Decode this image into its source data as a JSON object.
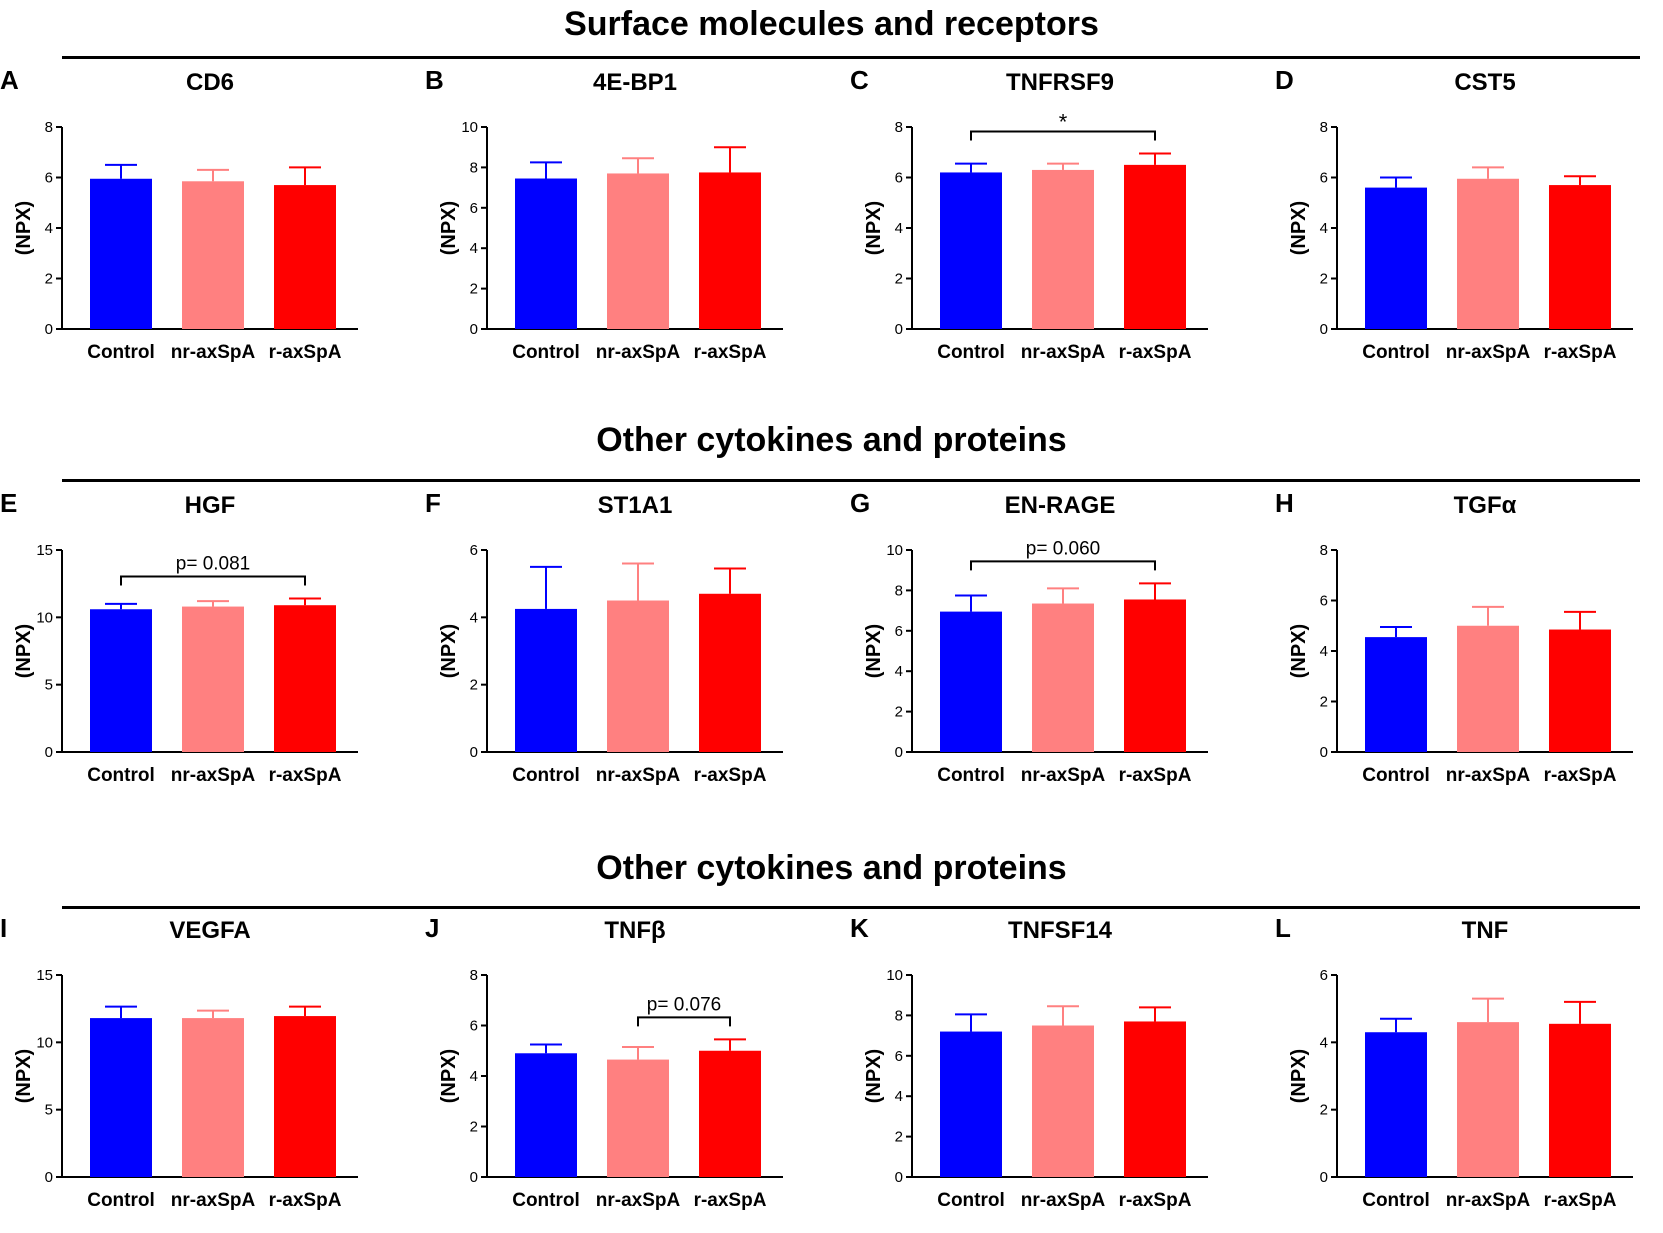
{
  "sections": [
    {
      "title": "Surface molecules and receptors"
    },
    {
      "title": "Other cytokines and proteins"
    },
    {
      "title": "Other cytokines and proteins"
    }
  ],
  "legend_colors": {
    "Control": "#0000ff",
    "nr-axSpA": "#ff8080",
    "r-axSpA": "#ff0000"
  },
  "chart_data": [
    {
      "type": "bar",
      "letter": "A",
      "title": "CD6",
      "ylabel": "(NPX)",
      "categories": [
        "Control",
        "nr-axSpA",
        "r-axSpA"
      ],
      "values": [
        5.95,
        5.85,
        5.7
      ],
      "errors": [
        0.55,
        0.45,
        0.7
      ],
      "ylim": [
        0,
        8
      ],
      "yticks": [
        "0",
        "2",
        "4",
        "6",
        "8"
      ],
      "annotation": null
    },
    {
      "type": "bar",
      "letter": "B",
      "title": "4E-BP1",
      "ylabel": "(NPX)",
      "categories": [
        "Control",
        "nr-axSpA",
        "r-axSpA"
      ],
      "values": [
        7.45,
        7.7,
        7.75
      ],
      "errors": [
        0.8,
        0.75,
        1.25
      ],
      "ylim": [
        0,
        10
      ],
      "yticks": [
        "0",
        "2",
        "4",
        "6",
        "8",
        "10"
      ],
      "annotation": null
    },
    {
      "type": "bar",
      "letter": "C",
      "title": "TNFRSF9",
      "ylabel": "(NPX)",
      "categories": [
        "Control",
        "nr-axSpA",
        "r-axSpA"
      ],
      "values": [
        6.2,
        6.3,
        6.5
      ],
      "errors": [
        0.35,
        0.25,
        0.45
      ],
      "ylim": [
        0,
        8
      ],
      "yticks": [
        "0",
        "2",
        "4",
        "6",
        "8"
      ],
      "annotation": {
        "from": 0,
        "to": 2,
        "text": "*"
      }
    },
    {
      "type": "bar",
      "letter": "D",
      "title": "CST5",
      "ylabel": "(NPX)",
      "categories": [
        "Control",
        "nr-axSpA",
        "r-axSpA"
      ],
      "values": [
        5.6,
        5.95,
        5.7
      ],
      "errors": [
        0.4,
        0.45,
        0.35
      ],
      "ylim": [
        0,
        8
      ],
      "yticks": [
        "0",
        "2",
        "4",
        "6",
        "8"
      ],
      "annotation": null
    },
    {
      "type": "bar",
      "letter": "E",
      "title": "HGF",
      "ylabel": "(NPX)",
      "categories": [
        "Control",
        "nr-axSpA",
        "r-axSpA"
      ],
      "values": [
        10.6,
        10.8,
        10.9
      ],
      "errors": [
        0.4,
        0.4,
        0.5
      ],
      "ylim": [
        0,
        15
      ],
      "yticks": [
        "0",
        "5",
        "10",
        "15"
      ],
      "annotation": {
        "from": 0,
        "to": 2,
        "text": "p= 0.081"
      }
    },
    {
      "type": "bar",
      "letter": "F",
      "title": "ST1A1",
      "ylabel": "(NPX)",
      "categories": [
        "Control",
        "nr-axSpA",
        "r-axSpA"
      ],
      "values": [
        4.25,
        4.5,
        4.7
      ],
      "errors": [
        1.25,
        1.1,
        0.75
      ],
      "ylim": [
        0,
        6
      ],
      "yticks": [
        "0",
        "2",
        "4",
        "6"
      ],
      "annotation": null
    },
    {
      "type": "bar",
      "letter": "G",
      "title": "EN-RAGE",
      "ylabel": "(NPX)",
      "categories": [
        "Control",
        "nr-axSpA",
        "r-axSpA"
      ],
      "values": [
        6.95,
        7.35,
        7.55
      ],
      "errors": [
        0.8,
        0.75,
        0.8
      ],
      "ylim": [
        0,
        10
      ],
      "yticks": [
        "0",
        "2",
        "4",
        "6",
        "8",
        "10"
      ],
      "annotation": {
        "from": 0,
        "to": 2,
        "text": "p= 0.060"
      }
    },
    {
      "type": "bar",
      "letter": "H",
      "title": "TGFα",
      "ylabel": "(NPX)",
      "categories": [
        "Control",
        "nr-axSpA",
        "r-axSpA"
      ],
      "values": [
        4.55,
        5.0,
        4.85
      ],
      "errors": [
        0.4,
        0.75,
        0.7
      ],
      "ylim": [
        0,
        8
      ],
      "yticks": [
        "0",
        "2",
        "4",
        "6",
        "8"
      ],
      "annotation": null
    },
    {
      "type": "bar",
      "letter": "I",
      "title": "VEGFA",
      "ylabel": "(NPX)",
      "categories": [
        "Control",
        "nr-axSpA",
        "r-axSpA"
      ],
      "values": [
        11.8,
        11.8,
        11.95
      ],
      "errors": [
        0.85,
        0.55,
        0.7
      ],
      "ylim": [
        0,
        15
      ],
      "yticks": [
        "0",
        "5",
        "10",
        "15"
      ],
      "annotation": null
    },
    {
      "type": "bar",
      "letter": "J",
      "title": "TNFβ",
      "ylabel": "(NPX)",
      "categories": [
        "Control",
        "nr-axSpA",
        "r-axSpA"
      ],
      "values": [
        4.9,
        4.65,
        5.0
      ],
      "errors": [
        0.35,
        0.5,
        0.45
      ],
      "ylim": [
        0,
        8
      ],
      "yticks": [
        "0",
        "2",
        "4",
        "6",
        "8"
      ],
      "annotation": {
        "from": 1,
        "to": 2,
        "text": "p= 0.076"
      }
    },
    {
      "type": "bar",
      "letter": "K",
      "title": "TNFSF14",
      "ylabel": "(NPX)",
      "categories": [
        "Control",
        "nr-axSpA",
        "r-axSpA"
      ],
      "values": [
        7.2,
        7.5,
        7.7
      ],
      "errors": [
        0.85,
        0.95,
        0.7
      ],
      "ylim": [
        0,
        10
      ],
      "yticks": [
        "0",
        "2",
        "4",
        "6",
        "8",
        "10"
      ],
      "annotation": null
    },
    {
      "type": "bar",
      "letter": "L",
      "title": "TNF",
      "ylabel": "(NPX)",
      "categories": [
        "Control",
        "nr-axSpA",
        "r-axSpA"
      ],
      "values": [
        4.3,
        4.6,
        4.55
      ],
      "errors": [
        0.4,
        0.7,
        0.65
      ],
      "ylim": [
        0,
        6
      ],
      "yticks": [
        "0",
        "2",
        "4",
        "6"
      ],
      "annotation": null
    }
  ]
}
